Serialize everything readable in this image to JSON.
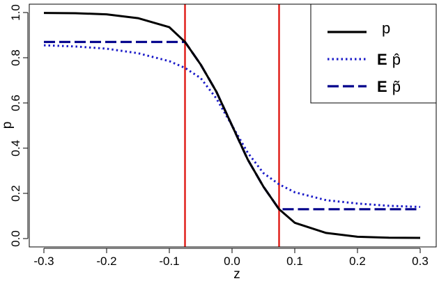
{
  "chart_data": {
    "type": "line",
    "title": "",
    "xlabel": "z",
    "ylabel": "p",
    "xlim": [
      -0.3,
      0.3
    ],
    "ylim": [
      0.0,
      1.0
    ],
    "xticks": [
      -0.3,
      -0.2,
      -0.1,
      0.0,
      0.1,
      0.2,
      0.3
    ],
    "xtick_labels": [
      "-0.3",
      "-0.2",
      "-0.1",
      "0.0",
      "0.1",
      "0.2",
      "0.3"
    ],
    "yticks": [
      0.0,
      0.2,
      0.4,
      0.6,
      0.8,
      1.0
    ],
    "ytick_labels": [
      "0.0",
      "0.2",
      "0.4",
      "0.6",
      "0.8",
      "1.0"
    ],
    "grid": false,
    "legend_position": "top-right",
    "vlines": [
      {
        "x": -0.075,
        "color": "#e0201b"
      },
      {
        "x": 0.075,
        "color": "#e0201b"
      }
    ],
    "x": [
      -0.3,
      -0.25,
      -0.2,
      -0.15,
      -0.1,
      -0.075,
      -0.05,
      -0.025,
      0.0,
      0.025,
      0.05,
      0.075,
      0.1,
      0.15,
      0.2,
      0.25,
      0.3
    ],
    "series": [
      {
        "name": "p",
        "style": "solid",
        "color": "#000000",
        "values": [
          0.998,
          0.997,
          0.992,
          0.975,
          0.935,
          0.87,
          0.77,
          0.65,
          0.5,
          0.35,
          0.23,
          0.13,
          0.07,
          0.025,
          0.008,
          0.004,
          0.003
        ]
      },
      {
        "name_main": "E",
        "name_sub": "p̂",
        "style": "dotted",
        "color": "#1b1bc8",
        "values": [
          0.855,
          0.85,
          0.84,
          0.82,
          0.785,
          0.755,
          0.71,
          0.62,
          0.5,
          0.38,
          0.29,
          0.24,
          0.205,
          0.17,
          0.155,
          0.145,
          0.14
        ]
      },
      {
        "name_main": "E",
        "name_sub": "p̃",
        "style": "dashed",
        "color": "#00008b",
        "values": [
          0.87,
          0.87,
          0.87,
          0.87,
          0.87,
          0.87,
          0.77,
          0.65,
          0.5,
          0.35,
          0.23,
          0.13,
          0.13,
          0.13,
          0.13,
          0.13,
          0.13
        ]
      }
    ]
  }
}
